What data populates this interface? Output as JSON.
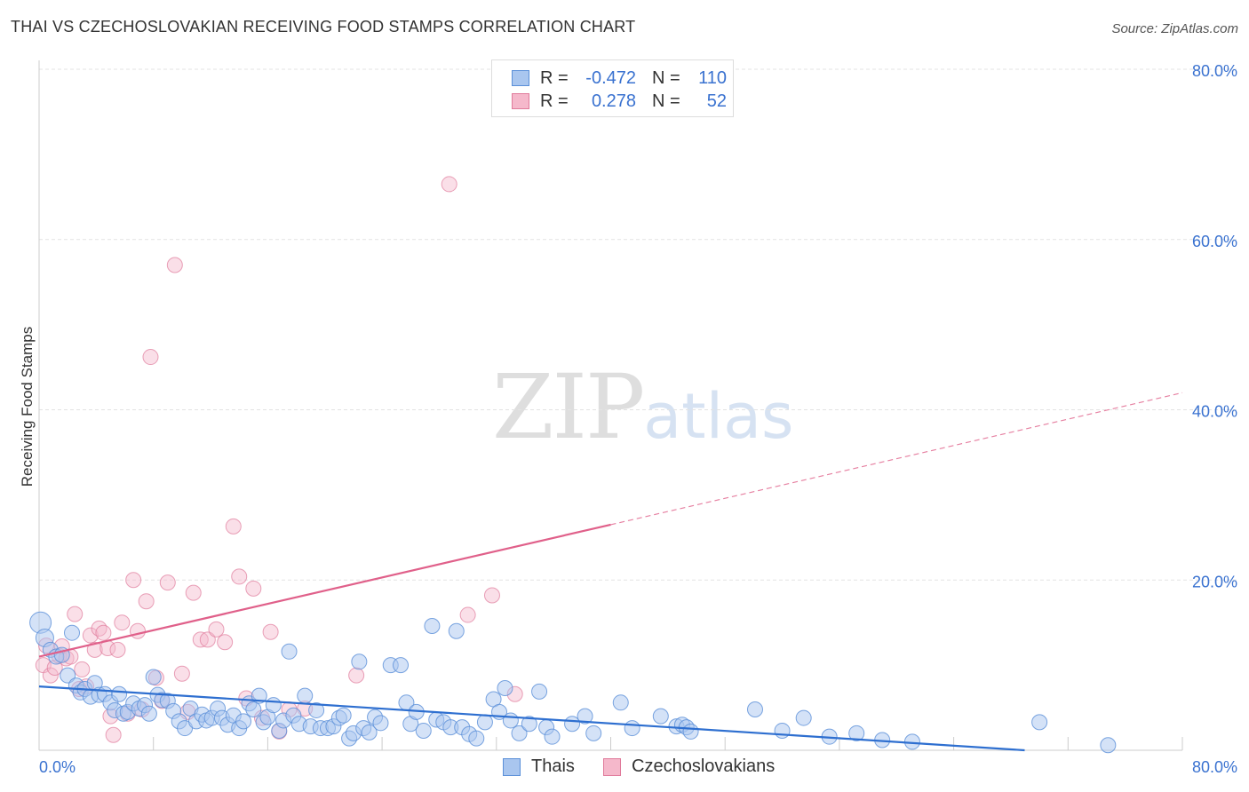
{
  "title": "THAI VS CZECHOSLOVAKIAN RECEIVING FOOD STAMPS CORRELATION CHART",
  "source": "Source: ZipAtlas.com",
  "watermark": {
    "zip": "ZIP",
    "atlas": "atlas"
  },
  "legend": {
    "rows": [
      {
        "r_label": "R =",
        "r_value": "-0.472",
        "n_label": "N =",
        "n_value": "110"
      },
      {
        "r_label": "R =",
        "r_value": "0.278",
        "n_label": "N =",
        "n_value": "52"
      }
    ]
  },
  "colors": {
    "thai_fill": "#a9c6ef",
    "thai_stroke": "#5a8fd8",
    "thai_line": "#2e6fd0",
    "czech_fill": "#f5b8cb",
    "czech_stroke": "#e07a9b",
    "czech_line": "#e0608a",
    "grid": "#e3e3e3",
    "axis_text": "#3a72d0"
  },
  "chart_data": {
    "type": "scatter",
    "title": "THAI VS CZECHOSLOVAKIAN RECEIVING FOOD STAMPS CORRELATION CHART",
    "xlabel": "",
    "ylabel": "Receiving Food Stamps",
    "xlim": [
      0,
      80
    ],
    "ylim": [
      0,
      80
    ],
    "x_tick_labels": [
      "0.0%",
      "80.0%"
    ],
    "y_ticks": [
      20,
      40,
      60,
      80
    ],
    "y_tick_labels": [
      "20.0%",
      "40.0%",
      "60.0%",
      "80.0%"
    ],
    "grid": true,
    "legend_placement": "bottom-center",
    "series": [
      {
        "name": "Thais",
        "r": -0.472,
        "n": 110,
        "trend": {
          "x0": 0,
          "y0": 7.5,
          "x1": 80,
          "y1": -1.2
        },
        "points": [
          [
            0.1,
            15.0
          ],
          [
            0.4,
            13.2
          ],
          [
            0.8,
            11.8
          ],
          [
            1.2,
            11.0
          ],
          [
            1.6,
            11.2
          ],
          [
            2.0,
            8.8
          ],
          [
            2.3,
            13.8
          ],
          [
            2.6,
            7.6
          ],
          [
            2.9,
            6.8
          ],
          [
            3.2,
            7.2
          ],
          [
            3.6,
            6.3
          ],
          [
            3.9,
            7.9
          ],
          [
            4.2,
            6.5
          ],
          [
            4.6,
            6.6
          ],
          [
            5.0,
            5.6
          ],
          [
            5.3,
            4.7
          ],
          [
            5.6,
            6.6
          ],
          [
            5.9,
            4.3
          ],
          [
            6.2,
            4.5
          ],
          [
            6.6,
            5.5
          ],
          [
            7.0,
            4.9
          ],
          [
            7.4,
            5.3
          ],
          [
            7.7,
            4.3
          ],
          [
            8.0,
            8.6
          ],
          [
            8.3,
            6.5
          ],
          [
            8.6,
            5.9
          ],
          [
            9.0,
            5.8
          ],
          [
            9.4,
            4.6
          ],
          [
            9.8,
            3.4
          ],
          [
            10.2,
            2.6
          ],
          [
            10.6,
            4.9
          ],
          [
            11.0,
            3.4
          ],
          [
            11.4,
            4.2
          ],
          [
            11.7,
            3.5
          ],
          [
            12.1,
            3.8
          ],
          [
            12.5,
            4.9
          ],
          [
            12.8,
            3.8
          ],
          [
            13.2,
            3.0
          ],
          [
            13.6,
            4.1
          ],
          [
            14.0,
            2.6
          ],
          [
            14.3,
            3.4
          ],
          [
            14.7,
            5.5
          ],
          [
            15.0,
            4.8
          ],
          [
            15.4,
            6.4
          ],
          [
            15.7,
            3.3
          ],
          [
            16.0,
            3.9
          ],
          [
            16.4,
            5.3
          ],
          [
            16.8,
            2.3
          ],
          [
            17.1,
            3.5
          ],
          [
            17.5,
            11.6
          ],
          [
            17.8,
            4.1
          ],
          [
            18.2,
            3.1
          ],
          [
            18.6,
            6.4
          ],
          [
            19.0,
            2.8
          ],
          [
            19.4,
            4.7
          ],
          [
            19.7,
            2.6
          ],
          [
            20.2,
            2.6
          ],
          [
            20.6,
            2.8
          ],
          [
            21.0,
            3.8
          ],
          [
            21.3,
            4.1
          ],
          [
            21.7,
            1.4
          ],
          [
            22.0,
            2.0
          ],
          [
            22.4,
            10.4
          ],
          [
            22.7,
            2.6
          ],
          [
            23.1,
            2.1
          ],
          [
            23.5,
            3.9
          ],
          [
            23.9,
            3.2
          ],
          [
            24.6,
            10.0
          ],
          [
            25.3,
            10.0
          ],
          [
            25.7,
            5.6
          ],
          [
            26.0,
            3.1
          ],
          [
            26.4,
            4.5
          ],
          [
            26.9,
            2.3
          ],
          [
            27.5,
            14.6
          ],
          [
            27.8,
            3.6
          ],
          [
            28.3,
            3.3
          ],
          [
            28.8,
            2.7
          ],
          [
            29.2,
            14.0
          ],
          [
            29.6,
            2.7
          ],
          [
            30.1,
            1.9
          ],
          [
            30.6,
            1.4
          ],
          [
            31.2,
            3.3
          ],
          [
            31.8,
            6.0
          ],
          [
            32.2,
            4.5
          ],
          [
            32.6,
            7.3
          ],
          [
            33.0,
            3.5
          ],
          [
            33.6,
            2.0
          ],
          [
            34.3,
            3.1
          ],
          [
            35.0,
            6.9
          ],
          [
            35.5,
            2.7
          ],
          [
            35.9,
            1.6
          ],
          [
            37.3,
            3.1
          ],
          [
            38.2,
            4.0
          ],
          [
            38.8,
            2.0
          ],
          [
            40.7,
            5.6
          ],
          [
            41.5,
            2.6
          ],
          [
            43.5,
            4.0
          ],
          [
            44.6,
            2.8
          ],
          [
            45.0,
            3.0
          ],
          [
            45.3,
            2.7
          ],
          [
            45.6,
            2.2
          ],
          [
            50.1,
            4.8
          ],
          [
            52.0,
            2.3
          ],
          [
            53.5,
            3.8
          ],
          [
            55.3,
            1.6
          ],
          [
            57.2,
            2.0
          ],
          [
            59.0,
            1.2
          ],
          [
            61.1,
            1.0
          ],
          [
            70.0,
            3.3
          ],
          [
            74.8,
            0.6
          ]
        ]
      },
      {
        "name": "Czechoslovakians",
        "r": 0.278,
        "n": 52,
        "trend": {
          "x0": 0,
          "y0": 11.0,
          "x1": 40,
          "y1": 26.5,
          "dashed_x1": 80,
          "dashed_y1": 42.0
        },
        "points": [
          [
            0.3,
            10.0
          ],
          [
            0.5,
            12.3
          ],
          [
            0.8,
            8.8
          ],
          [
            1.1,
            9.7
          ],
          [
            1.4,
            11.1
          ],
          [
            1.6,
            12.2
          ],
          [
            1.9,
            10.8
          ],
          [
            2.2,
            11.0
          ],
          [
            2.5,
            16.0
          ],
          [
            2.8,
            7.2
          ],
          [
            3.0,
            9.5
          ],
          [
            3.3,
            7.5
          ],
          [
            3.6,
            13.5
          ],
          [
            3.9,
            11.8
          ],
          [
            4.2,
            14.3
          ],
          [
            4.5,
            13.8
          ],
          [
            4.8,
            12.0
          ],
          [
            5.2,
            1.8
          ],
          [
            5.5,
            11.8
          ],
          [
            5.8,
            15.0
          ],
          [
            6.2,
            4.3
          ],
          [
            6.6,
            20.0
          ],
          [
            6.9,
            14.0
          ],
          [
            7.2,
            4.8
          ],
          [
            7.5,
            17.5
          ],
          [
            7.8,
            46.2
          ],
          [
            8.2,
            8.5
          ],
          [
            8.6,
            5.8
          ],
          [
            9.0,
            19.7
          ],
          [
            9.5,
            57.0
          ],
          [
            10.0,
            9.0
          ],
          [
            10.4,
            4.5
          ],
          [
            10.8,
            18.5
          ],
          [
            11.3,
            13.0
          ],
          [
            11.8,
            13.0
          ],
          [
            12.4,
            14.2
          ],
          [
            13.0,
            12.7
          ],
          [
            13.6,
            26.3
          ],
          [
            14.0,
            20.4
          ],
          [
            14.5,
            6.1
          ],
          [
            15.0,
            19.0
          ],
          [
            15.6,
            3.8
          ],
          [
            16.2,
            13.9
          ],
          [
            16.8,
            2.2
          ],
          [
            17.5,
            4.8
          ],
          [
            18.6,
            4.9
          ],
          [
            22.2,
            8.8
          ],
          [
            28.7,
            66.5
          ],
          [
            30.0,
            15.9
          ],
          [
            31.7,
            18.2
          ],
          [
            33.3,
            6.6
          ],
          [
            5.0,
            4.0
          ]
        ]
      }
    ]
  },
  "bottom_legend": {
    "thai_label": "Thais",
    "czech_label": "Czechoslovakians"
  }
}
